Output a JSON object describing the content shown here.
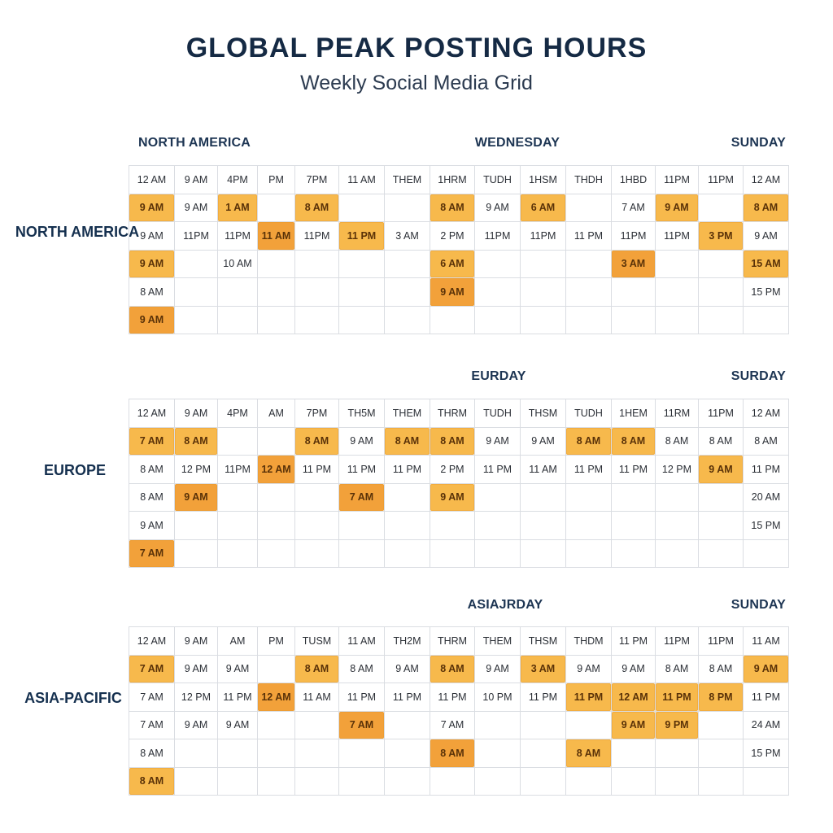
{
  "title": "GLOBAL PEAK POSTING HOURS",
  "subtitle": "Weekly Social Media Grid",
  "chart_data": {
    "type": "table",
    "sections": [
      {
        "name": "NORTH AMERICA",
        "region_label": "NORTH AMERICA",
        "header_left": "NORTH AMERICA",
        "header_mid": "WEDNESDAY",
        "header_right": "SUNDAY",
        "rows": [
          [
            "12 AM",
            "9 AM",
            "4PM",
            "PM",
            "7PM",
            "11 AM",
            "THEM",
            "1HRM",
            "TUDH",
            "1HSM",
            "THDH",
            "1HBD",
            "11PM",
            "11PM",
            "12 AM"
          ],
          [
            "9 AM",
            "9 AM",
            "1 AM",
            "",
            "8 AM",
            "",
            "",
            "8 AM",
            "9 AM",
            "6 AM",
            "",
            "7 AM",
            "9 AM",
            "",
            "8 AM"
          ],
          [
            "9 AM",
            "11PM",
            "11PM",
            "11 AM",
            "11PM",
            "11 PM",
            "3 AM",
            "2 PM",
            "11PM",
            "11PM",
            "11 PM",
            "11PM",
            "11PM",
            "3 PM",
            "9 AM"
          ],
          [
            "9 AM",
            "",
            "10 AM",
            "",
            "",
            "",
            "",
            "6 AM",
            "",
            "",
            "",
            "3 AM",
            "",
            "",
            "15 AM"
          ],
          [
            "8 AM",
            "",
            "",
            "",
            "",
            "",
            "",
            "9 AM",
            "",
            "",
            "",
            "",
            "",
            "",
            "15 PM"
          ],
          [
            "9 AM",
            "",
            "",
            "",
            "",
            "",
            "",
            "",
            "",
            "",
            "",
            "",
            "",
            "",
            ""
          ]
        ],
        "highlights": [
          [
            1,
            0
          ],
          [
            1,
            2
          ],
          [
            1,
            4
          ],
          [
            1,
            7
          ],
          [
            1,
            9
          ],
          [
            1,
            12
          ],
          [
            1,
            14
          ],
          [
            2,
            3
          ],
          [
            2,
            5
          ],
          [
            2,
            13
          ],
          [
            3,
            0
          ],
          [
            3,
            7
          ],
          [
            3,
            11
          ],
          [
            3,
            14
          ],
          [
            4,
            7
          ],
          [
            5,
            0
          ]
        ]
      },
      {
        "name": "EUROPE",
        "region_label": "EUROPE",
        "header_left": "",
        "header_mid": "EURDAY",
        "header_right": "SURDAY",
        "rows": [
          [
            "12 AM",
            "9 AM",
            "4PM",
            "AM",
            "7PM",
            "TH5M",
            "THEM",
            "THRM",
            "TUDH",
            "THSM",
            "TUDH",
            "1HEM",
            "11RM",
            "11PM",
            "12 AM"
          ],
          [
            "7 AM",
            "8 AM",
            "",
            "",
            "8 AM",
            "9 AM",
            "8 AM",
            "8 AM",
            "9 AM",
            "9 AM",
            "8 AM",
            "8 AM",
            "8 AM",
            "8 AM",
            "8 AM"
          ],
          [
            "8 AM",
            "12 PM",
            "11PM",
            "12 AM",
            "11 PM",
            "11 PM",
            "11 PM",
            "2 PM",
            "11 PM",
            "11 AM",
            "11 PM",
            "11 PM",
            "12 PM",
            "9 AM",
            "11 PM"
          ],
          [
            "8 AM",
            "9 AM",
            "",
            "",
            "",
            "7 AM",
            "",
            "9 AM",
            "",
            "",
            "",
            "",
            "",
            "",
            "20 AM"
          ],
          [
            "9 AM",
            "",
            "",
            "",
            "",
            "",
            "",
            "",
            "",
            "",
            "",
            "",
            "",
            "",
            "15 PM"
          ],
          [
            "7 AM",
            "",
            "",
            "",
            "",
            "",
            "",
            "",
            "",
            "",
            "",
            "",
            "",
            "",
            ""
          ]
        ],
        "highlights": [
          [
            1,
            0
          ],
          [
            1,
            1
          ],
          [
            1,
            4
          ],
          [
            1,
            6
          ],
          [
            1,
            7
          ],
          [
            1,
            10
          ],
          [
            1,
            11
          ],
          [
            2,
            3
          ],
          [
            2,
            13
          ],
          [
            3,
            1
          ],
          [
            3,
            5
          ],
          [
            3,
            7
          ],
          [
            5,
            0
          ]
        ]
      },
      {
        "name": "ASIA-PACIFIC",
        "region_label": "ASIA-PACIFIC",
        "header_left": "",
        "header_mid": "ASIAJRDAY",
        "header_right": "SUNDAY",
        "rows": [
          [
            "12 AM",
            "9 AM",
            "AM",
            "PM",
            "TUSM",
            "11 AM",
            "TH2M",
            "THRM",
            "THEM",
            "THSM",
            "THDM",
            "11 PM",
            "11PM",
            "11PM",
            "11 AM"
          ],
          [
            "7 AM",
            "9 AM",
            "9 AM",
            "",
            "8 AM",
            "8 AM",
            "9 AM",
            "8 AM",
            "9 AM",
            "3 AM",
            "9 AM",
            "9 AM",
            "8 AM",
            "8 AM",
            "9 AM"
          ],
          [
            "7 AM",
            "12 PM",
            "11 PM",
            "12 AM",
            "11 AM",
            "11 PM",
            "11 PM",
            "11 PM",
            "10 PM",
            "11 PM",
            "11 PM",
            "12 AM",
            "11 PM",
            "8 PM",
            "11 PM"
          ],
          [
            "7 AM",
            "9 AM",
            "9 AM",
            "",
            "",
            "7 AM",
            "",
            "7 AM",
            "",
            "",
            "",
            "9 AM",
            "9 PM",
            "",
            "24 AM"
          ],
          [
            "8 AM",
            "",
            "",
            "",
            "",
            "",
            "",
            "8 AM",
            "",
            "",
            "8 AM",
            "",
            "",
            "",
            "15 PM"
          ],
          [
            "8 AM",
            "",
            "",
            "",
            "",
            "",
            "",
            "",
            "",
            "",
            "",
            "",
            "",
            "",
            ""
          ]
        ],
        "highlights": [
          [
            1,
            0
          ],
          [
            1,
            4
          ],
          [
            1,
            7
          ],
          [
            1,
            9
          ],
          [
            1,
            14
          ],
          [
            2,
            3
          ],
          [
            2,
            10
          ],
          [
            2,
            11
          ],
          [
            2,
            12
          ],
          [
            2,
            13
          ],
          [
            3,
            5
          ],
          [
            3,
            11
          ],
          [
            3,
            12
          ],
          [
            4,
            7
          ],
          [
            4,
            10
          ],
          [
            5,
            0
          ]
        ]
      }
    ]
  }
}
